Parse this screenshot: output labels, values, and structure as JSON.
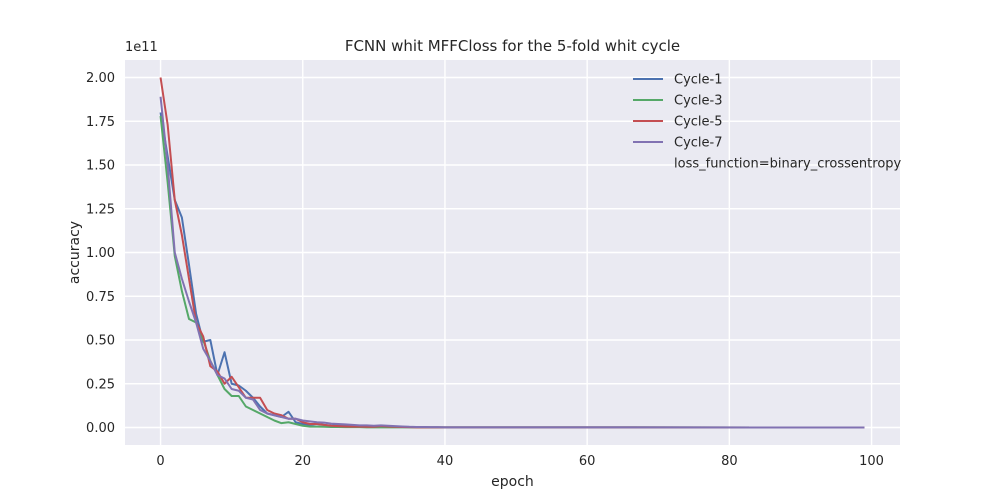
{
  "chart_data": {
    "type": "line",
    "title": "FCNN whit MFFCloss for the 5-fold whit cycle",
    "xlabel": "epoch",
    "ylabel": "accuracy",
    "y_offset_label": "1e11",
    "y_scale": 100000000000,
    "xlim": [
      -5,
      104
    ],
    "ylim": [
      -10000000000.0,
      210000000000.0
    ],
    "xticks": [
      0,
      20,
      40,
      60,
      80,
      100
    ],
    "yticks": [
      0,
      25000000000.0,
      50000000000.0,
      75000000000.0,
      100000000000.0,
      125000000000.0,
      150000000000.0,
      175000000000.0,
      200000000000.0
    ],
    "ytick_labels": [
      "0.00",
      "0.25",
      "0.50",
      "0.75",
      "1.00",
      "1.25",
      "1.50",
      "1.75",
      "2.00"
    ],
    "xtick_labels": [
      "0",
      "20",
      "40",
      "60",
      "80",
      "100"
    ],
    "grid": true,
    "legend_position": "top-right",
    "legend_note": "loss_function=binary_crossentropy",
    "x_last_epoch": 99,
    "series": [
      {
        "name": "Cycle-1",
        "color": "#4c72b0",
        "values": [
          180000000000.0,
          155000000000.0,
          130000000000.0,
          120000000000.0,
          93000000000.0,
          65000000000.0,
          49000000000.0,
          50000000000.0,
          30000000000.0,
          43000000000.0,
          25000000000.0,
          24000000000.0,
          21000000000.0,
          17000000000.0,
          12000000000.0,
          8000000000.0,
          7000000000.0,
          6000000000.0,
          9000000000.0,
          3000000000.0,
          2000000000.0,
          1500000000.0,
          2000000000.0,
          1500000000.0,
          1000000000.0,
          1500000000.0,
          1000000000.0,
          1000000000.0,
          800000000.0,
          600000000.0,
          500000000.0,
          400000000.0,
          400000000.0,
          300000000.0,
          300000000.0,
          200000000.0,
          200000000.0,
          200000000.0,
          100000000.0,
          100000000.0,
          100000000.0
        ]
      },
      {
        "name": "Cycle-3",
        "color": "#55a868",
        "values": [
          178000000000.0,
          140000000000.0,
          98000000000.0,
          78000000000.0,
          62000000000.0,
          60000000000.0,
          50000000000.0,
          38000000000.0,
          30000000000.0,
          22000000000.0,
          18000000000.0,
          18000000000.0,
          12000000000.0,
          10000000000.0,
          8000000000.0,
          6000000000.0,
          4000000000.0,
          2500000000.0,
          3000000000.0,
          2000000000.0,
          1000000000.0,
          500000000.0,
          500000000.0,
          400000000.0,
          300000000.0,
          300000000.0,
          200000000.0,
          200000000.0,
          200000000.0,
          100000000.0,
          100000000.0
        ]
      },
      {
        "name": "Cycle-5",
        "color": "#c44e52",
        "values": [
          200000000000.0,
          173000000000.0,
          130000000000.0,
          110000000000.0,
          85000000000.0,
          60000000000.0,
          52000000000.0,
          35000000000.0,
          32000000000.0,
          25000000000.0,
          29000000000.0,
          23000000000.0,
          17000000000.0,
          17000000000.0,
          17000000000.0,
          10000000000.0,
          8000000000.0,
          7000000000.0,
          5000000000.0,
          5000000000.0,
          3000000000.0,
          2000000000.0,
          2000000000.0,
          1500000000.0,
          1000000000.0,
          800000000.0,
          600000000.0,
          500000000.0,
          500000000.0,
          400000000.0,
          400000000.0,
          800000000.0,
          600000000.0,
          400000000.0,
          300000000.0,
          200000000.0,
          100000000.0,
          100000000.0
        ]
      },
      {
        "name": "Cycle-7",
        "color": "#8172b2",
        "values": [
          189000000000.0,
          150000000000.0,
          100000000000.0,
          85000000000.0,
          72000000000.0,
          60000000000.0,
          45000000000.0,
          38000000000.0,
          30000000000.0,
          28000000000.0,
          22000000000.0,
          21000000000.0,
          17000000000.0,
          16000000000.0,
          10000000000.0,
          8000000000.0,
          7000000000.0,
          6000000000.0,
          5000000000.0,
          5000000000.0,
          4000000000.0,
          3500000000.0,
          3000000000.0,
          2800000000.0,
          2200000000.0,
          2000000000.0,
          1800000000.0,
          1500000000.0,
          1200000000.0,
          1200000000.0,
          1000000000.0,
          1200000000.0,
          1000000000.0,
          800000000.0,
          600000000.0,
          400000000.0,
          300000000.0,
          300000000.0,
          200000000.0,
          200000000.0,
          100000000.0
        ]
      }
    ]
  }
}
